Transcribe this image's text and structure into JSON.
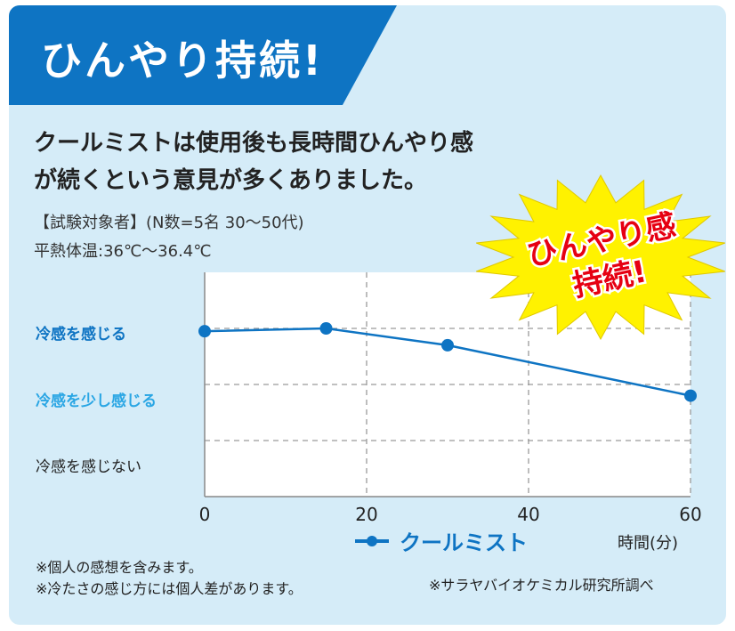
{
  "banner": {
    "title": "ひんやり持続!"
  },
  "lead": {
    "line1": "クールミストは使用後も長時間ひんやり感",
    "line2": "が続くという意見が多くありました。"
  },
  "meta": {
    "subjects": "【試験対象者】(N数=5名 30〜50代)",
    "temperature": "平熱体温:36℃〜36.4℃"
  },
  "burst": {
    "line1": "ひんやり感",
    "line2": "持続!"
  },
  "colors": {
    "accent": "#0e74c3",
    "light_accent": "#2aa6e4",
    "panel_bg": "#d5ecf8",
    "starburst_yellow": "#fff200",
    "starburst_text": "#e60012"
  },
  "chart_data": {
    "type": "line",
    "x": [
      0,
      15,
      30,
      60
    ],
    "series": [
      {
        "name": "クールミスト",
        "values": [
          2.95,
          3.0,
          2.7,
          1.8
        ],
        "color": "#0e74c3"
      }
    ],
    "xlim": [
      0,
      60
    ],
    "xticks": [
      "0",
      "20",
      "40",
      "60"
    ],
    "xtick_values": [
      0,
      20,
      40,
      60
    ],
    "ylim": [
      0,
      4
    ],
    "ylevels": [
      {
        "label": "冷感を感じる",
        "value": 3,
        "color": "#0e74c3",
        "bold": true
      },
      {
        "label": "冷感を少し感じる",
        "value": 2,
        "color": "#2aa6e4",
        "bold": true
      },
      {
        "label": "冷感を感じない",
        "value": 1,
        "color": "#222222",
        "bold": false
      }
    ],
    "xlabel": "時間(分)",
    "legend": "bottom-center",
    "grid": true
  },
  "notes": [
    "※個人の感想を含みます。",
    "※冷たさの感じ方には個人差があります。"
  ],
  "source": "※サラヤバイオケミカル研究所調べ"
}
